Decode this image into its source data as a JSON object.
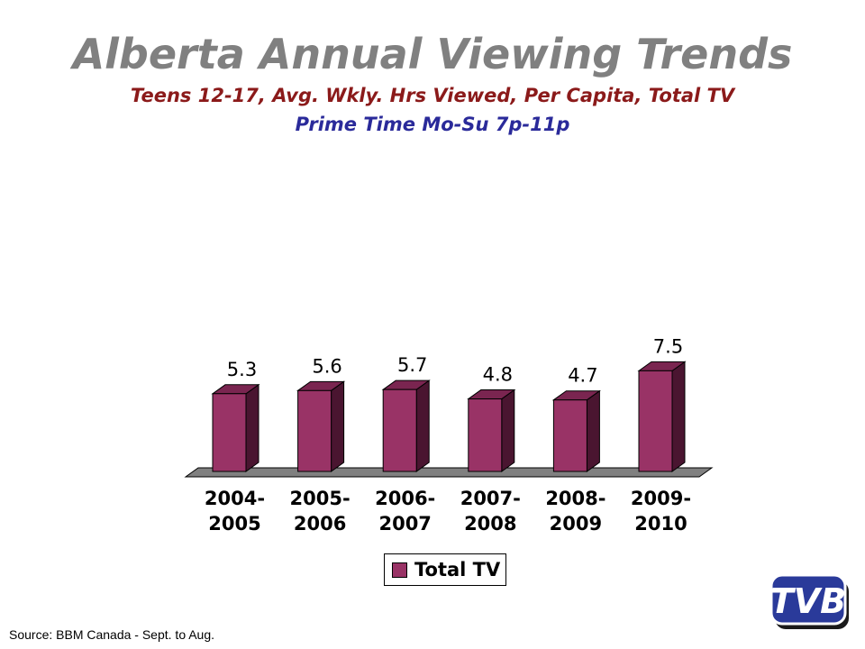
{
  "header": {
    "title": "Alberta Annual Viewing Trends",
    "subtitle1": "Teens 12-17, Avg. Wkly. Hrs Viewed, Per Capita, Total TV",
    "subtitle2": "Prime Time Mo-Su 7p-11p"
  },
  "footer": {
    "source": "Source: BBM Canada - Sept. to Aug.",
    "logo_text": "TVB"
  },
  "colors": {
    "bar_front": "#993366",
    "bar_side": "#4a1530",
    "bar_top": "#7a2550",
    "floor": "#808080",
    "title": "#808080",
    "subtitle1": "#8b1a1a",
    "subtitle2": "#2a2a9a",
    "logo": "#2a3a9a"
  },
  "chart_data": {
    "type": "bar",
    "title": "",
    "xlabel": "",
    "ylabel": "",
    "categories": [
      [
        "2004-",
        "2005"
      ],
      [
        "2005-",
        "2006"
      ],
      [
        "2006-",
        "2007"
      ],
      [
        "2007-",
        "2008"
      ],
      [
        "2008-",
        "2009"
      ],
      [
        "2009-",
        "2010"
      ]
    ],
    "series": [
      {
        "name": "Total TV",
        "values": [
          5.3,
          5.6,
          5.7,
          4.8,
          4.7,
          7.5
        ]
      }
    ],
    "data_labels": [
      "5.3",
      "5.6",
      "5.7",
      "4.8",
      "4.7",
      "7.5"
    ],
    "ylim": [
      0,
      8
    ],
    "grid": false,
    "legend": "bottom-center",
    "three_d": true
  }
}
